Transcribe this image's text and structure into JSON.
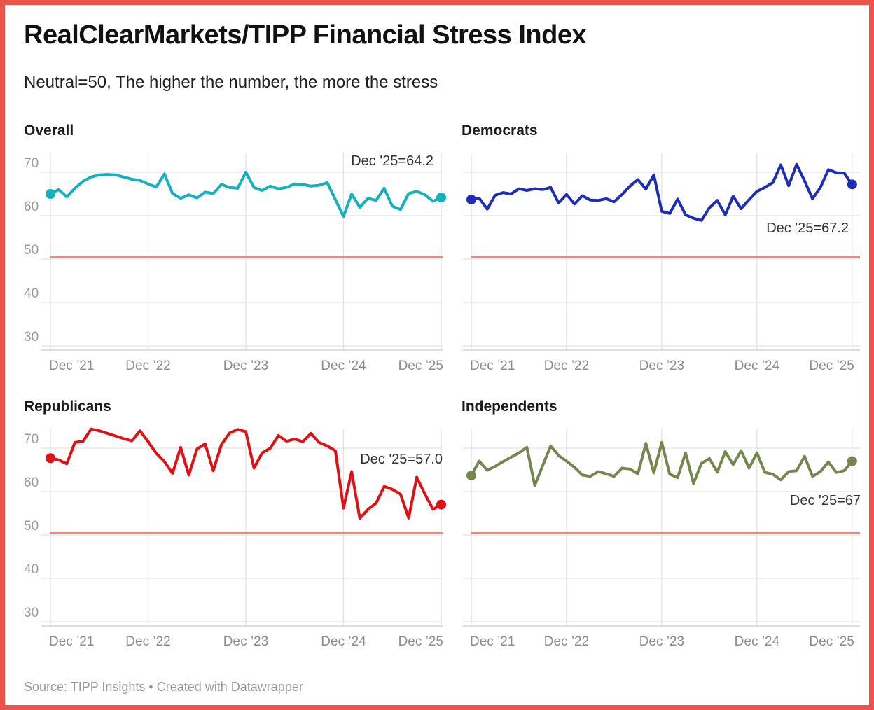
{
  "header": {
    "title": "RealClearMarkets/TIPP Financial Stress Index",
    "subtitle": "Neutral=50, The higher the number, the more the stress"
  },
  "footer": {
    "text": "Source: TIPP Insights • Created with Datawrapper"
  },
  "colors": {
    "frame_border": "#e9544b",
    "neutral_line": "#f0857a",
    "gridline": "#e2e2e2",
    "axis_line": "#cbcbcb",
    "tick_text": "#9b9b9b"
  },
  "chart_data": {
    "type": "line",
    "layout": "2x2 small multiples",
    "x_start": "Dec 2021",
    "x_end": "Dec 2025",
    "x_interval": "monthly",
    "x_tick_labels": [
      "Dec ’21",
      "Dec ’22",
      "Dec ’23",
      "Dec ’24",
      "Dec ’25"
    ],
    "y_ticks": [
      30,
      40,
      50,
      60,
      70
    ],
    "ylim": [
      28,
      74.5
    ],
    "grid": "on",
    "neutral_line_value": 50,
    "panels": [
      {
        "title": "Overall",
        "color": "#13b1bd",
        "annotation": "Dec '25=64.2",
        "end_value": 64.2,
        "values": [
          65.0,
          66.0,
          64.3,
          66.3,
          67.9,
          68.9,
          69.4,
          69.5,
          69.4,
          68.9,
          68.4,
          68.1,
          67.3,
          66.6,
          69.6,
          65.1,
          64.0,
          64.8,
          64.1,
          65.4,
          65.1,
          67.2,
          66.5,
          66.3,
          70.0,
          66.5,
          65.8,
          66.8,
          66.2,
          66.5,
          67.3,
          67.2,
          66.8,
          67.0,
          67.6,
          63.7,
          59.8,
          65.0,
          61.9,
          64.0,
          63.5,
          66.3,
          62.2,
          61.4,
          65.1,
          65.6,
          64.8,
          63.3,
          64.2
        ]
      },
      {
        "title": "Democrats",
        "color": "#1d2db6",
        "annotation": "Dec '25=67.2",
        "end_value": 67.2,
        "values": [
          63.7,
          64.0,
          61.5,
          64.7,
          65.3,
          65.0,
          66.2,
          65.8,
          66.2,
          66.0,
          66.5,
          62.9,
          64.9,
          62.7,
          64.6,
          63.6,
          63.5,
          63.9,
          63.2,
          64.9,
          66.8,
          68.3,
          66.1,
          69.4,
          61.0,
          60.5,
          63.8,
          60.2,
          59.4,
          58.9,
          61.8,
          63.5,
          60.2,
          64.5,
          61.6,
          63.7,
          65.6,
          66.5,
          67.6,
          71.7,
          66.9,
          71.8,
          68.0,
          63.9,
          66.5,
          70.6,
          69.9,
          69.8,
          67.2
        ]
      },
      {
        "title": "Republicans",
        "color": "#e01115",
        "annotation": "Dec '25=57.0",
        "end_value": 57.0,
        "values": [
          67.7,
          67.3,
          66.4,
          71.3,
          71.6,
          74.4,
          74.0,
          73.4,
          72.8,
          72.2,
          71.7,
          74.0,
          71.5,
          68.8,
          66.9,
          64.2,
          70.2,
          63.8,
          69.8,
          71.0,
          64.8,
          70.8,
          73.5,
          74.3,
          73.8,
          65.4,
          68.9,
          70.0,
          72.9,
          71.6,
          72.1,
          71.5,
          73.4,
          71.3,
          70.5,
          69.4,
          56.2,
          64.6,
          53.8,
          55.9,
          57.3,
          61.2,
          60.5,
          59.4,
          53.9,
          63.3,
          59.4,
          55.9,
          57.0
        ]
      },
      {
        "title": "Independents",
        "color": "#77854e",
        "annotation": "Dec '25=67",
        "end_value": 67.0,
        "values": [
          63.7,
          67.0,
          64.9,
          65.8,
          66.9,
          67.9,
          68.9,
          70.2,
          61.4,
          66.0,
          70.5,
          68.3,
          67.0,
          65.6,
          63.8,
          63.5,
          64.6,
          64.1,
          63.5,
          65.4,
          65.2,
          64.1,
          71.1,
          64.3,
          71.3,
          64.0,
          63.2,
          68.9,
          61.9,
          66.5,
          67.6,
          64.5,
          69.2,
          66.2,
          69.4,
          65.4,
          68.9,
          64.4,
          64.0,
          62.7,
          64.6,
          64.8,
          68.1,
          63.5,
          64.6,
          66.8,
          64.4,
          64.8,
          67.0
        ]
      }
    ]
  }
}
